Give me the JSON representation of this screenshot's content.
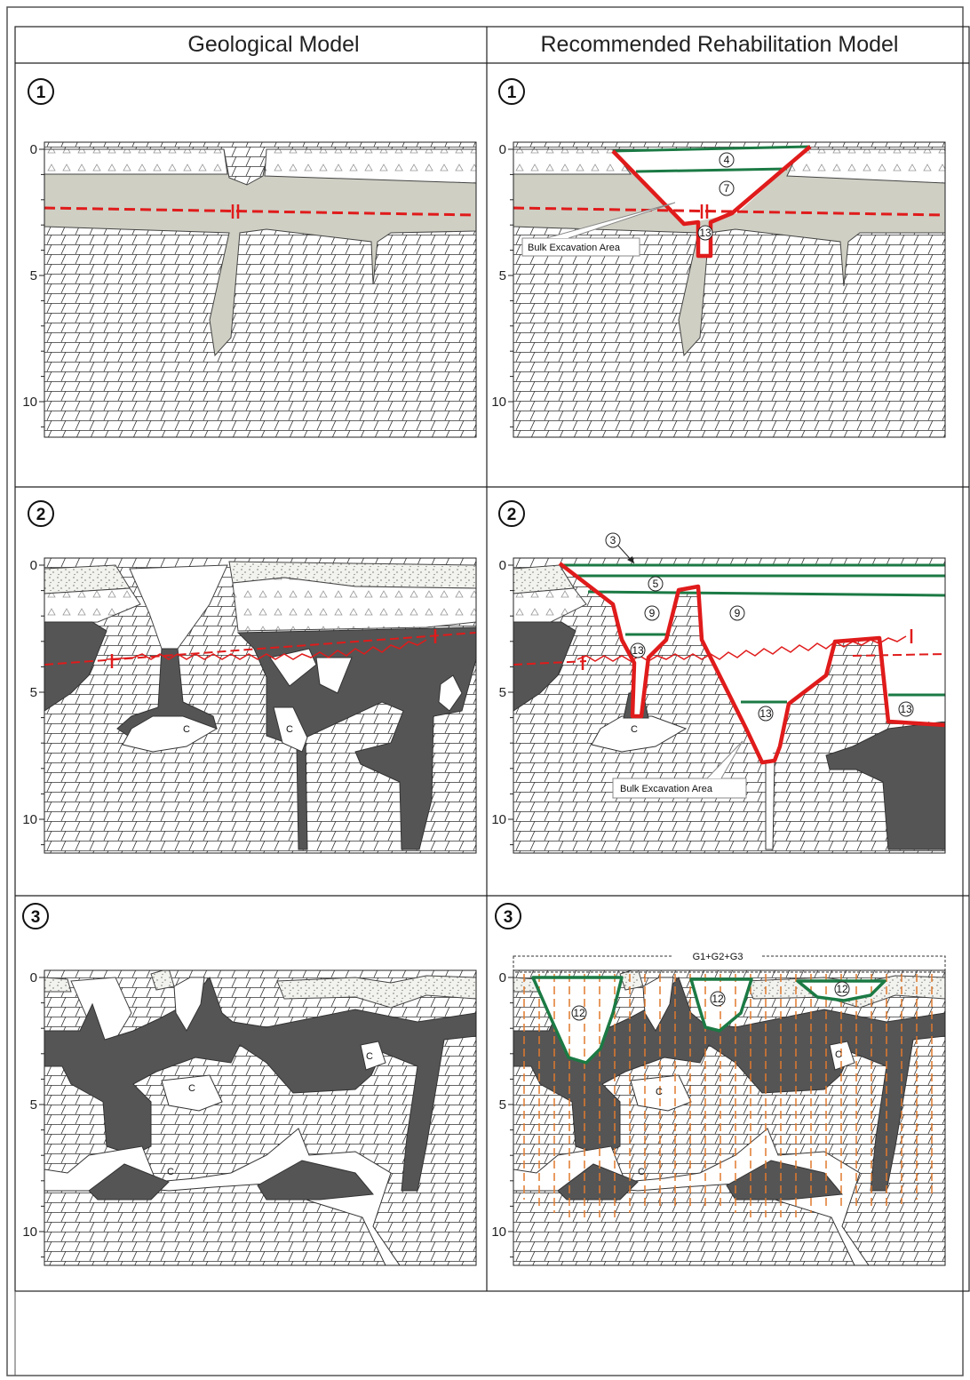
{
  "headers": {
    "left": "Geological Model",
    "right": "Recommended Rehabilitation Model"
  },
  "cases": [
    "1",
    "2",
    "3"
  ],
  "depth_ticks": [
    "0",
    "5",
    "10"
  ],
  "labels": {
    "bulk_excavation": "Bulk Excavation Area",
    "cavity": "C",
    "grout": "G1+G2+G3"
  },
  "markers": {
    "case1": [
      "4",
      "7",
      "13"
    ],
    "case2": [
      "3",
      "5",
      "9",
      "9",
      "13",
      "13",
      "13"
    ],
    "case3": [
      "12",
      "12",
      "12"
    ]
  },
  "colors": {
    "green": "#1b7a44",
    "red": "#e01b1b",
    "grout": "#e07a2e",
    "clay": "#cfcfc4",
    "dark": "#555555"
  }
}
